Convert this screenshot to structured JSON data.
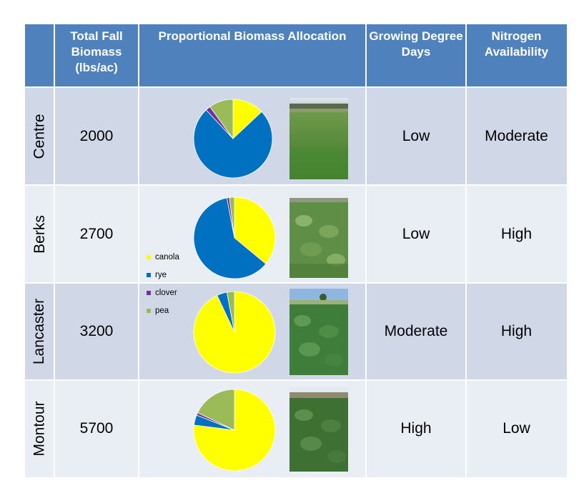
{
  "headers": {
    "region": "",
    "biomass": "Total Fall Biomass (lbs/ac)",
    "allocation": "Proportional Biomass Allocation",
    "gdd": "Growing Degree Days",
    "nitrogen": "Nitrogen Availability"
  },
  "rows": [
    {
      "name": "Centre",
      "biomass": "2000",
      "gdd": "Low",
      "nitrogen": "Moderate"
    },
    {
      "name": "Berks",
      "biomass": "2700",
      "gdd": "Low",
      "nitrogen": "High"
    },
    {
      "name": "Lancaster",
      "biomass": "3200",
      "gdd": "Moderate",
      "nitrogen": "High"
    },
    {
      "name": "Montour",
      "biomass": "5700",
      "gdd": "High",
      "nitrogen": "Low"
    }
  ],
  "legend": [
    {
      "label": "canola",
      "color": "#ffff00"
    },
    {
      "label": "rye",
      "color": "#0070c0"
    },
    {
      "label": "clover",
      "color": "#7030a0"
    },
    {
      "label": "pea",
      "color": "#9bbb59"
    }
  ],
  "chart_data": [
    {
      "type": "pie",
      "title": "",
      "categories": [
        "canola",
        "rye",
        "clover",
        "pea"
      ],
      "values": [
        0.13,
        0.75,
        0.02,
        0.1
      ]
    },
    {
      "type": "pie",
      "title": "",
      "categories": [
        "canola",
        "rye",
        "clover",
        "pea"
      ],
      "values": [
        0.36,
        0.61,
        0.01,
        0.02
      ]
    },
    {
      "type": "pie",
      "title": "",
      "categories": [
        "canola",
        "rye",
        "clover",
        "pea"
      ],
      "values": [
        0.93,
        0.04,
        0.0,
        0.03
      ]
    },
    {
      "type": "pie",
      "title": "",
      "categories": [
        "canola",
        "rye",
        "clover",
        "pea"
      ],
      "values": [
        0.77,
        0.04,
        0.01,
        0.18
      ]
    }
  ]
}
